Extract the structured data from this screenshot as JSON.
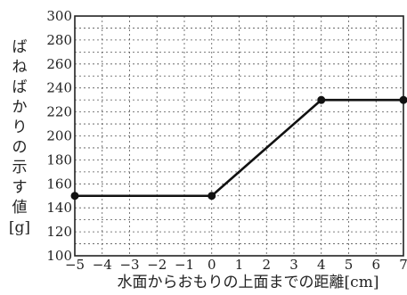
{
  "chart_data": {
    "type": "line",
    "title": "",
    "xlabel": "水面からおもりの上面までの距離[cm]",
    "ylabel": [
      "ば",
      "ね",
      "ば",
      "か",
      "り",
      "の",
      "示",
      "す",
      "値",
      "[g]"
    ],
    "xlim": [
      -5,
      7
    ],
    "ylim": [
      100,
      300
    ],
    "x_ticks": [
      -5,
      -4,
      -3,
      -2,
      -1,
      0,
      1,
      2,
      3,
      4,
      5,
      6,
      7
    ],
    "x_tick_labels": [
      "−5",
      "−4",
      "−3",
      "−2",
      "−1",
      "0",
      "1",
      "2",
      "3",
      "4",
      "5",
      "6",
      "7"
    ],
    "y_ticks": [
      100,
      120,
      140,
      160,
      180,
      200,
      220,
      240,
      260,
      280,
      300
    ],
    "y_tick_labels": [
      "100",
      "120",
      "140",
      "160",
      "180",
      "200",
      "220",
      "240",
      "260",
      "280",
      "300"
    ],
    "grid": true,
    "minor_grid_step_y": 10,
    "series": [
      {
        "x": [
          -5,
          0,
          4,
          7
        ],
        "y": [
          150,
          150,
          230,
          230
        ],
        "line_segments": [
          [
            [
              -5,
              150
            ],
            [
              0,
              150
            ]
          ],
          [
            [
              0,
              150
            ],
            [
              4,
              230
            ]
          ],
          [
            [
              4,
              230
            ],
            [
              7,
              230
            ]
          ]
        ],
        "color": "#111111"
      }
    ]
  }
}
